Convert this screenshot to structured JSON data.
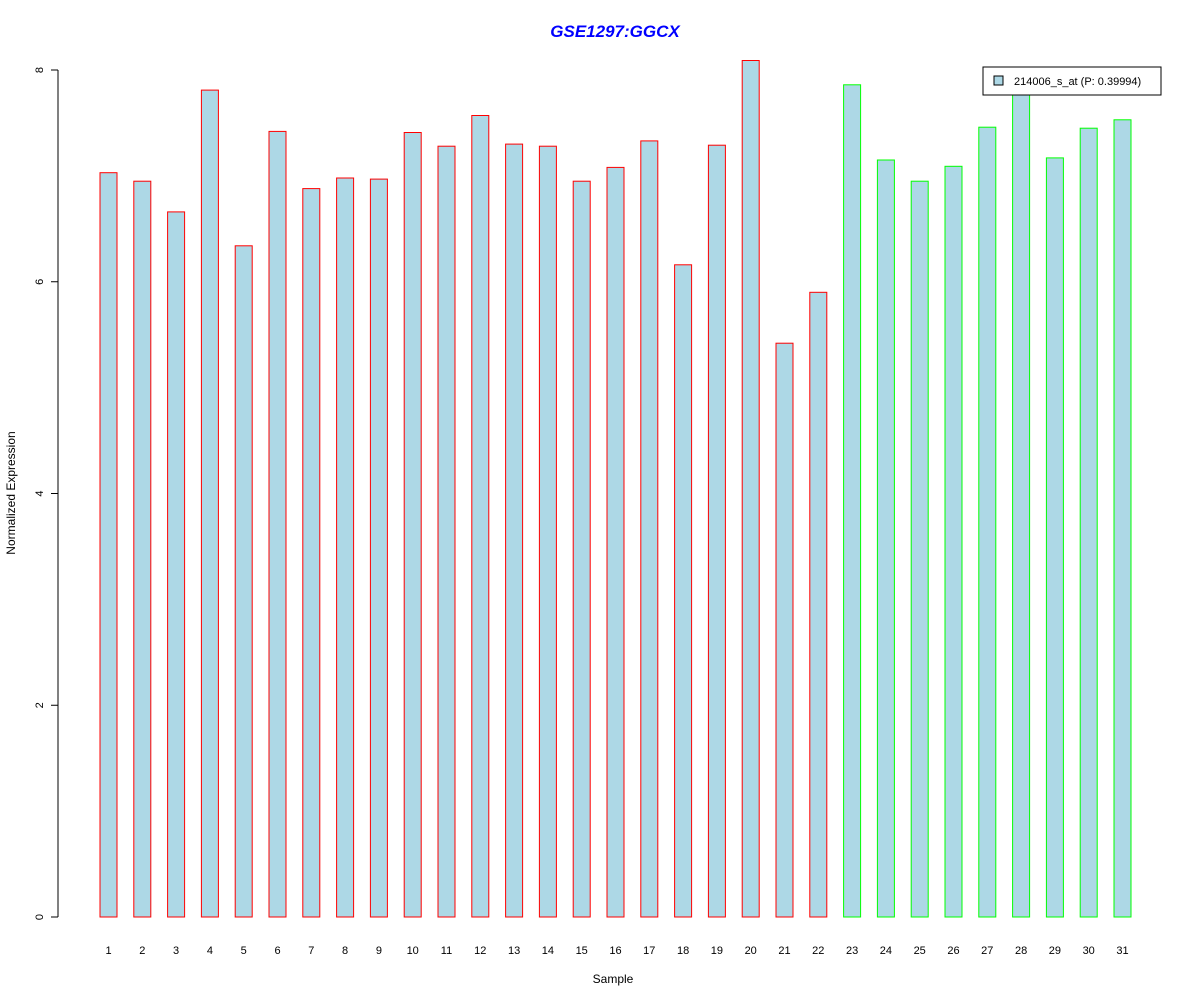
{
  "chart_data": {
    "type": "bar",
    "title": "GSE1297:GGCX",
    "xlabel": "Sample",
    "ylabel": "Normalized Expression",
    "ylim": [
      0,
      8
    ],
    "yticks": [
      0,
      2,
      4,
      6,
      8
    ],
    "grid": false,
    "legend_position": "top-right",
    "categories": [
      "1",
      "2",
      "3",
      "4",
      "5",
      "6",
      "7",
      "8",
      "9",
      "10",
      "11",
      "12",
      "13",
      "14",
      "15",
      "16",
      "17",
      "18",
      "19",
      "20",
      "21",
      "22",
      "23",
      "24",
      "25",
      "26",
      "27",
      "28",
      "29",
      "30",
      "31"
    ],
    "series": [
      {
        "name": "214006_s_at (P: 0.39994)",
        "values": [
          7.03,
          6.95,
          6.66,
          7.81,
          6.34,
          7.42,
          6.88,
          6.98,
          6.97,
          7.41,
          7.28,
          7.57,
          7.3,
          7.28,
          6.95,
          7.08,
          7.33,
          6.16,
          7.29,
          8.09,
          5.42,
          5.9,
          7.86,
          7.15,
          6.95,
          7.09,
          7.46,
          7.8,
          7.17,
          7.45,
          7.53
        ]
      }
    ],
    "groups": [
      "1",
      "1",
      "1",
      "1",
      "1",
      "1",
      "1",
      "1",
      "1",
      "1",
      "1",
      "1",
      "1",
      "1",
      "1",
      "1",
      "1",
      "1",
      "1",
      "1",
      "1",
      "1",
      "2",
      "2",
      "2",
      "2",
      "2",
      "2",
      "2",
      "2",
      "2"
    ],
    "colors": {
      "bar_fill": "#add8e6",
      "group_1_border": "#ff0000",
      "group_2_border": "#00ff00",
      "title": "#0000ff",
      "axis": "#000000"
    }
  }
}
